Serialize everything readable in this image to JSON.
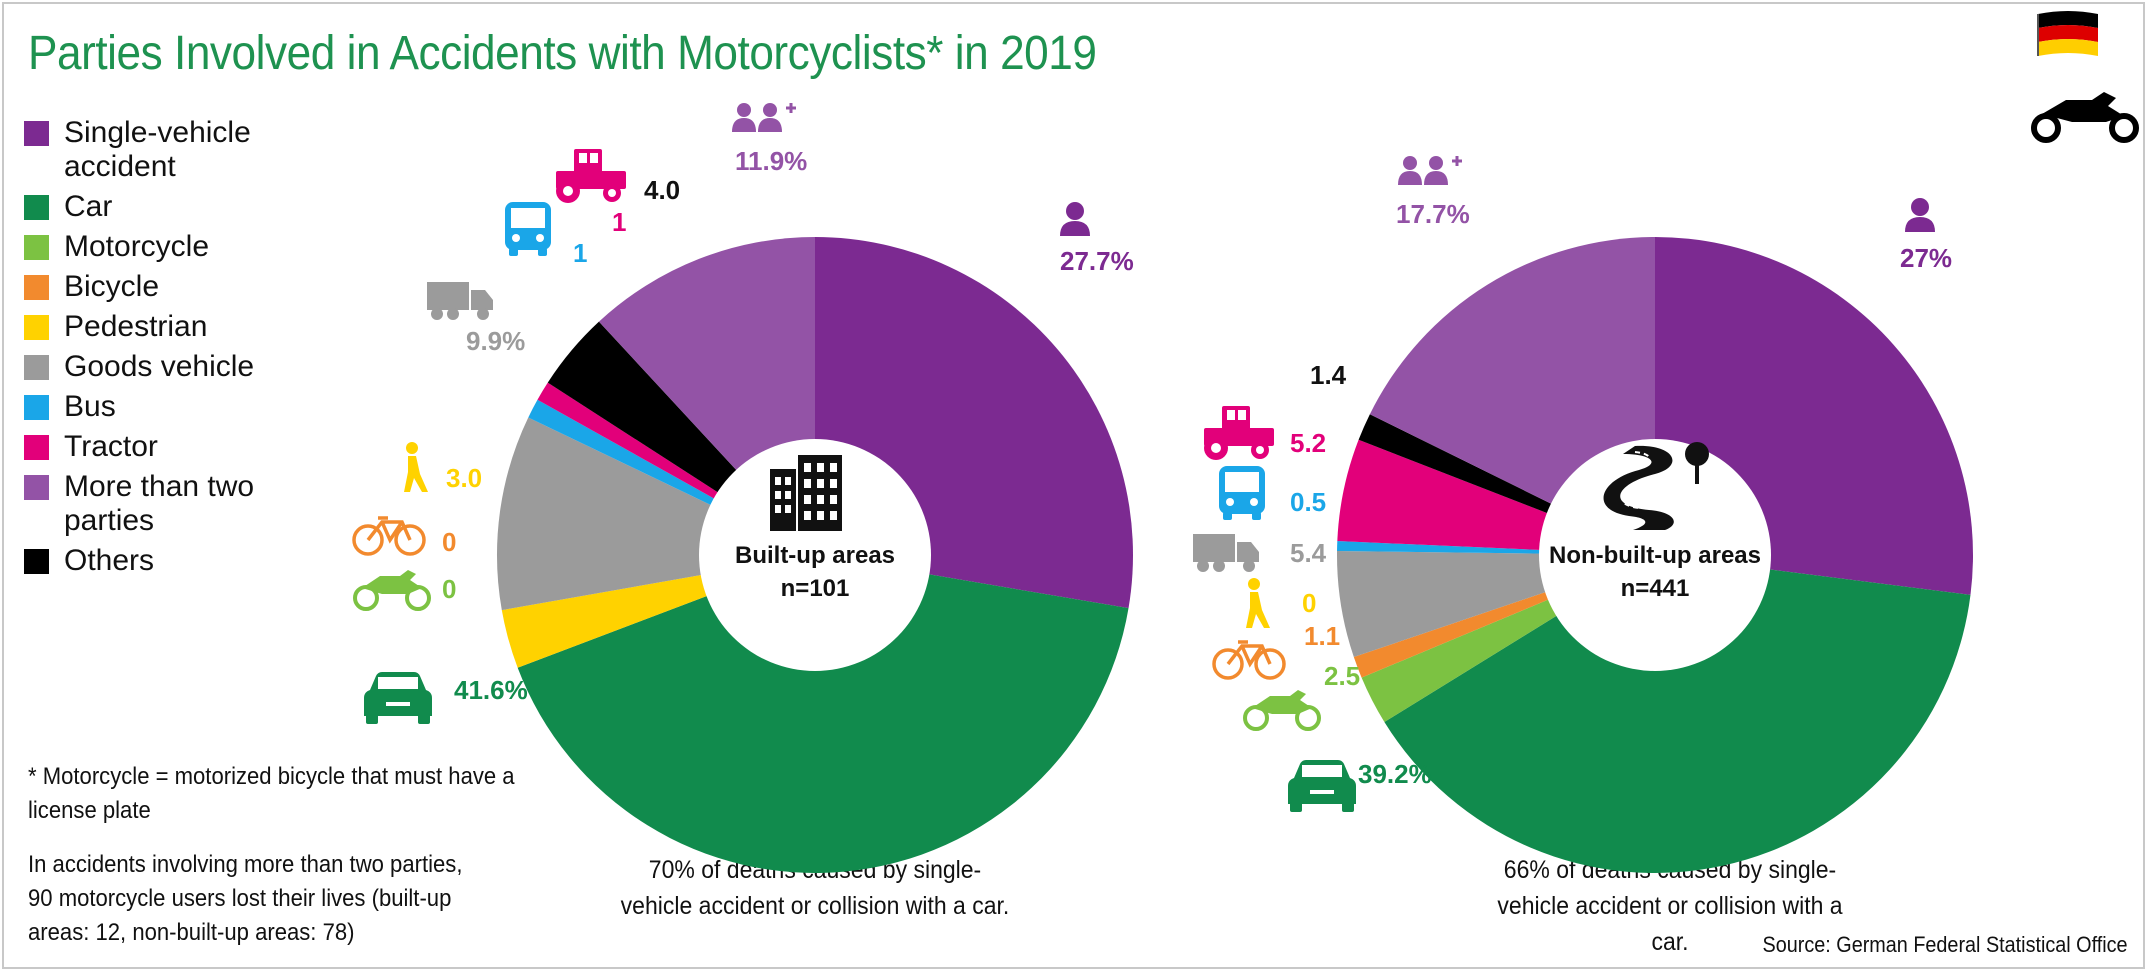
{
  "title": "Parties Involved in Accidents with Motorcyclists* in 2019",
  "colors": {
    "single": "#7c2a91",
    "car": "#118b4d",
    "motorcycle": "#7cc242",
    "bicycle": "#f28a2e",
    "pedestrian": "#ffd200",
    "goods": "#9b9b9b",
    "bus": "#1aa6e8",
    "tractor": "#e2007a",
    "more": "#9353a6",
    "others": "#000000",
    "title": "#1e9250"
  },
  "legend": [
    {
      "label": "Single-vehicle accident",
      "color": "#7c2a91"
    },
    {
      "label": "Car",
      "color": "#118b4d"
    },
    {
      "label": "Motorcycle",
      "color": "#7cc242"
    },
    {
      "label": "Bicycle",
      "color": "#f28a2e"
    },
    {
      "label": "Pedestrian",
      "color": "#ffd200"
    },
    {
      "label": "Goods vehicle",
      "color": "#9b9b9b"
    },
    {
      "label": "Bus",
      "color": "#1aa6e8"
    },
    {
      "label": "Tractor",
      "color": "#e2007a"
    },
    {
      "label": "More than two parties",
      "color": "#9353a6"
    },
    {
      "label": "Others",
      "color": "#000000"
    }
  ],
  "notes": {
    "motorcycle_def": "* Motorcycle = motorized bicycle that must have a license plate",
    "more_parties": "In accidents involving more than two parties, 90 motorcycle users lost their lives (built-up areas: 12, non-built-up areas: 78)"
  },
  "source": "Source: German Federal Statistical Office",
  "icons": {
    "flag": "germany-flag-icon",
    "corner": "motorcycle-icon"
  },
  "chart_data": [
    {
      "type": "pie",
      "name": "built-up",
      "center_title": "Built-up areas",
      "center_n": "n=101",
      "caption": "70% of deaths caused by single-vehicle accident or collision with a car.",
      "slices": [
        {
          "key": "single",
          "label": "Single-vehicle accident",
          "value": 27.7,
          "display": "27.7%"
        },
        {
          "key": "car",
          "label": "Car",
          "value": 41.6,
          "display": "41.6%"
        },
        {
          "key": "motorcycle",
          "label": "Motorcycle",
          "value": 0,
          "display": "0"
        },
        {
          "key": "bicycle",
          "label": "Bicycle",
          "value": 0,
          "display": "0"
        },
        {
          "key": "pedestrian",
          "label": "Pedestrian",
          "value": 3.0,
          "display": "3.0"
        },
        {
          "key": "goods",
          "label": "Goods vehicle",
          "value": 9.9,
          "display": "9.9%"
        },
        {
          "key": "bus",
          "label": "Bus",
          "value": 1,
          "display": "1"
        },
        {
          "key": "tractor",
          "label": "Tractor",
          "value": 1,
          "display": "1"
        },
        {
          "key": "others",
          "label": "Others",
          "value": 4.0,
          "display": "4.0"
        },
        {
          "key": "more",
          "label": "More than two parties",
          "value": 11.9,
          "display": "11.9%"
        }
      ]
    },
    {
      "type": "pie",
      "name": "non-built-up",
      "center_title": "Non-built-up areas",
      "center_n": "n=441",
      "caption": "66% of deaths caused by single-vehicle accident or collision with a car.",
      "slices": [
        {
          "key": "single",
          "label": "Single-vehicle accident",
          "value": 27,
          "display": "27%"
        },
        {
          "key": "car",
          "label": "Car",
          "value": 39.2,
          "display": "39.2%"
        },
        {
          "key": "motorcycle",
          "label": "Motorcycle",
          "value": 2.5,
          "display": "2.5"
        },
        {
          "key": "bicycle",
          "label": "Bicycle",
          "value": 1.1,
          "display": "1.1"
        },
        {
          "key": "pedestrian",
          "label": "Pedestrian",
          "value": 0,
          "display": "0"
        },
        {
          "key": "goods",
          "label": "Goods vehicle",
          "value": 5.4,
          "display": "5.4"
        },
        {
          "key": "bus",
          "label": "Bus",
          "value": 0.5,
          "display": "0.5"
        },
        {
          "key": "tractor",
          "label": "Tractor",
          "value": 5.2,
          "display": "5.2"
        },
        {
          "key": "others",
          "label": "Others",
          "value": 1.4,
          "display": "1.4"
        },
        {
          "key": "more",
          "label": "More than two parties",
          "value": 17.7,
          "display": "17.7%"
        }
      ]
    }
  ]
}
